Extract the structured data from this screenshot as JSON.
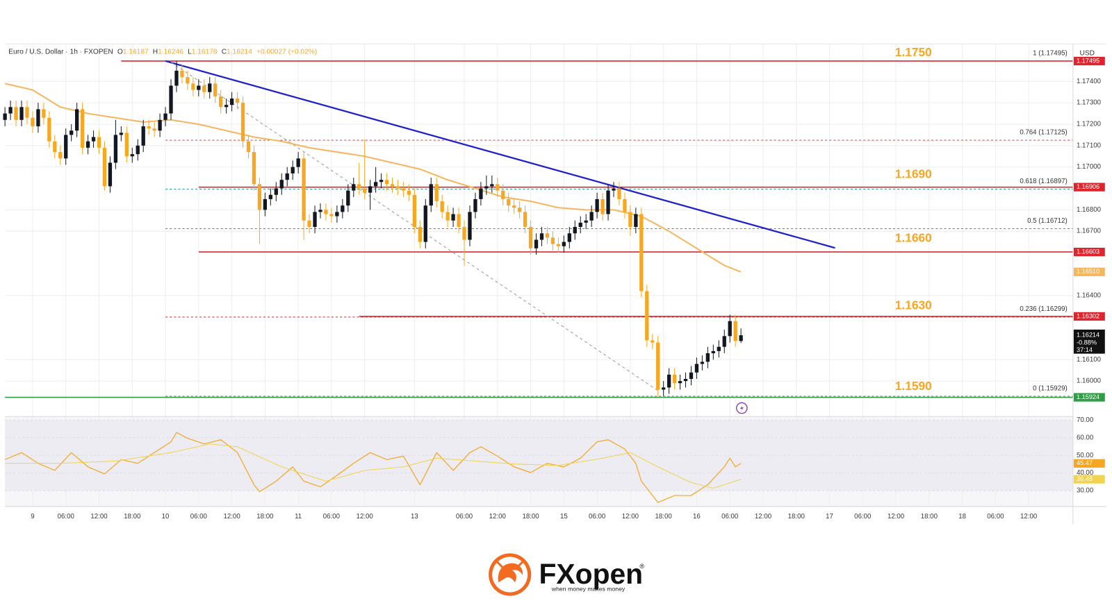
{
  "chart_data": [
    {
      "type": "candlestick",
      "title": "Euro / U.S. Dollar · 1h · FXOPEN",
      "ohlc_labels": [
        "O",
        "H",
        "L",
        "C"
      ],
      "change": "+0.00027 (+0.02%)",
      "currency": "USD",
      "open": [
        1.1722,
        1.1725,
        1.1728,
        1.1722,
        1.1728,
        1.1723,
        1.1719,
        1.1727,
        1.1723,
        1.1712,
        1.1707,
        1.1704,
        1.1715,
        1.1717,
        1.1727,
        1.1709,
        1.1712,
        1.1714,
        1.1709,
        1.1691,
        1.1702,
        1.1715,
        1.1716,
        1.1705,
        1.1706,
        1.171,
        1.1719,
        1.1718,
        1.1717,
        1.1722,
        1.1725,
        1.1738,
        1.1745,
        1.1742,
        1.1739,
        1.1736,
        1.1738,
        1.1735,
        1.1739,
        1.1733,
        1.1728,
        1.1729,
        1.1732,
        1.173,
        1.1712,
        1.1707,
        1.1692,
        1.168,
        1.1685,
        1.1687,
        1.169,
        1.1694,
        1.1697,
        1.17,
        1.1704,
        1.1675,
        1.1672,
        1.1679,
        1.168,
        1.1678,
        1.1677,
        1.1679,
        1.1682,
        1.1689,
        1.1692,
        1.169,
        1.1688,
        1.1691,
        1.1693,
        1.1694,
        1.1692,
        1.1691,
        1.169,
        1.1689,
        1.1687,
        1.1672,
        1.1665,
        1.1682,
        1.1692,
        1.1684,
        1.1679,
        1.1675,
        1.1678,
        1.1672,
        1.1666,
        1.1679,
        1.1685,
        1.169,
        1.1691,
        1.1692,
        1.1689,
        1.1685,
        1.1682,
        1.1681,
        1.1679,
        1.1672,
        1.1662,
        1.1666,
        1.1669,
        1.1667,
        1.1664,
        1.1663,
        1.1665,
        1.1669,
        1.1672,
        1.1674,
        1.1675,
        1.1679,
        1.1685,
        1.1678,
        1.1689,
        1.169,
        1.1685,
        1.1679,
        1.1672,
        1.1678,
        1.1642,
        1.1619,
        1.1618,
        1.1596,
        1.1597,
        1.1603,
        1.1599,
        1.16,
        1.1601,
        1.1604,
        1.1608,
        1.1609,
        1.1613,
        1.1614,
        1.1616,
        1.1621,
        1.1628,
        1.16187
      ],
      "high": [
        1.1728,
        1.1731,
        1.1731,
        1.1731,
        1.1731,
        1.1726,
        1.173,
        1.173,
        1.1726,
        1.1715,
        1.171,
        1.1718,
        1.172,
        1.173,
        1.173,
        1.1715,
        1.1717,
        1.1717,
        1.1712,
        1.1705,
        1.1722,
        1.1719,
        1.1719,
        1.1709,
        1.1713,
        1.1722,
        1.1722,
        1.1721,
        1.1725,
        1.1728,
        1.1741,
        1.17495,
        1.1748,
        1.1745,
        1.1742,
        1.1741,
        1.1741,
        1.1742,
        1.1742,
        1.1736,
        1.1732,
        1.1735,
        1.1735,
        1.1733,
        1.1715,
        1.171,
        1.1695,
        1.1688,
        1.169,
        1.1693,
        1.1697,
        1.17,
        1.1703,
        1.1707,
        1.1707,
        1.1678,
        1.1682,
        1.1683,
        1.1683,
        1.1681,
        1.1682,
        1.1685,
        1.1692,
        1.1695,
        1.1702,
        1.1713,
        1.1694,
        1.17,
        1.1697,
        1.1697,
        1.1695,
        1.1694,
        1.1693,
        1.1692,
        1.169,
        1.1675,
        1.1685,
        1.1695,
        1.1695,
        1.1687,
        1.1682,
        1.1681,
        1.1681,
        1.1675,
        1.1682,
        1.1688,
        1.1693,
        1.1696,
        1.1696,
        1.1695,
        1.1692,
        1.1688,
        1.1685,
        1.1684,
        1.1682,
        1.1675,
        1.1669,
        1.1672,
        1.1672,
        1.167,
        1.1667,
        1.1668,
        1.1672,
        1.1675,
        1.1677,
        1.1678,
        1.1682,
        1.1688,
        1.1688,
        1.1692,
        1.1693,
        1.1693,
        1.1688,
        1.1682,
        1.1681,
        1.1681,
        1.1645,
        1.1622,
        1.1621,
        1.16,
        1.1606,
        1.1606,
        1.1603,
        1.1604,
        1.1607,
        1.1611,
        1.1612,
        1.1616,
        1.1617,
        1.1619,
        1.1624,
        1.1631,
        1.1631,
        1.16246
      ],
      "low": [
        1.1719,
        1.1722,
        1.1719,
        1.1719,
        1.172,
        1.1716,
        1.1716,
        1.172,
        1.1709,
        1.1704,
        1.1701,
        1.1701,
        1.1712,
        1.1714,
        1.1706,
        1.1706,
        1.1709,
        1.1706,
        1.1689,
        1.1688,
        1.1699,
        1.1712,
        1.1702,
        1.1702,
        1.1703,
        1.1707,
        1.1715,
        1.1714,
        1.1714,
        1.1719,
        1.1722,
        1.1735,
        1.1739,
        1.1736,
        1.1733,
        1.1733,
        1.1732,
        1.1732,
        1.173,
        1.1725,
        1.1725,
        1.1726,
        1.1727,
        1.1709,
        1.1704,
        1.1689,
        1.1664,
        1.1677,
        1.1682,
        1.1684,
        1.1687,
        1.1691,
        1.1694,
        1.1697,
        1.1666,
        1.1669,
        1.1669,
        1.1676,
        1.1675,
        1.1674,
        1.1674,
        1.1676,
        1.1679,
        1.1686,
        1.1687,
        1.1685,
        1.168,
        1.1688,
        1.169,
        1.1689,
        1.1688,
        1.1687,
        1.1686,
        1.1684,
        1.1669,
        1.1662,
        1.1662,
        1.1679,
        1.1681,
        1.1676,
        1.1672,
        1.1672,
        1.1669,
        1.1654,
        1.1663,
        1.1676,
        1.1682,
        1.1687,
        1.1688,
        1.1686,
        1.1682,
        1.1679,
        1.1678,
        1.1676,
        1.1669,
        1.1659,
        1.1659,
        1.1663,
        1.1664,
        1.1661,
        1.166,
        1.166,
        1.1662,
        1.1666,
        1.1669,
        1.1671,
        1.1672,
        1.1676,
        1.1675,
        1.1675,
        1.1686,
        1.1682,
        1.1676,
        1.1668,
        1.1669,
        1.1639,
        1.1616,
        1.1615,
        1.15929,
        1.1593,
        1.1594,
        1.1596,
        1.1596,
        1.1597,
        1.1598,
        1.1601,
        1.1605,
        1.1606,
        1.161,
        1.1611,
        1.1613,
        1.1618,
        1.1616,
        1.16178
      ],
      "close": [
        1.1725,
        1.1728,
        1.1722,
        1.1728,
        1.1723,
        1.1719,
        1.1727,
        1.1723,
        1.1712,
        1.1707,
        1.1704,
        1.1715,
        1.1717,
        1.1727,
        1.1709,
        1.1712,
        1.1714,
        1.1709,
        1.1691,
        1.1702,
        1.1715,
        1.1716,
        1.1705,
        1.1706,
        1.171,
        1.1719,
        1.1718,
        1.1717,
        1.1722,
        1.1725,
        1.1738,
        1.1745,
        1.1742,
        1.1739,
        1.1736,
        1.1738,
        1.1735,
        1.1739,
        1.1733,
        1.1728,
        1.1729,
        1.1732,
        1.173,
        1.1712,
        1.1707,
        1.1692,
        1.168,
        1.1685,
        1.1687,
        1.169,
        1.1694,
        1.1697,
        1.17,
        1.1704,
        1.1675,
        1.1672,
        1.1679,
        1.168,
        1.1678,
        1.1677,
        1.1679,
        1.1682,
        1.1689,
        1.1692,
        1.169,
        1.1688,
        1.1691,
        1.1693,
        1.1694,
        1.1692,
        1.1691,
        1.169,
        1.1689,
        1.1687,
        1.1672,
        1.1665,
        1.1682,
        1.1692,
        1.1684,
        1.1679,
        1.1675,
        1.1678,
        1.1672,
        1.1666,
        1.1679,
        1.1685,
        1.169,
        1.1691,
        1.1692,
        1.1689,
        1.1685,
        1.1682,
        1.1681,
        1.1679,
        1.1672,
        1.1662,
        1.1666,
        1.1669,
        1.1667,
        1.1664,
        1.1663,
        1.1665,
        1.1669,
        1.1672,
        1.1674,
        1.1675,
        1.1679,
        1.1685,
        1.1678,
        1.1689,
        1.169,
        1.1685,
        1.1679,
        1.1672,
        1.1678,
        1.1642,
        1.1619,
        1.1618,
        1.1596,
        1.1597,
        1.1603,
        1.1599,
        1.16,
        1.1601,
        1.1604,
        1.1608,
        1.1609,
        1.1613,
        1.1614,
        1.1616,
        1.1621,
        1.1628,
        1.16187,
        1.16214
      ],
      "up_color": "#131722",
      "down_color": "#f7a823",
      "xlim": [
        0,
        193
      ],
      "xticks": [
        {
          "value": 5,
          "label": "9"
        },
        {
          "value": 11,
          "label": "06:00"
        },
        {
          "value": 17,
          "label": "12:00"
        },
        {
          "value": 23,
          "label": "18:00"
        },
        {
          "value": 29,
          "label": "10"
        },
        {
          "value": 35,
          "label": "06:00"
        },
        {
          "value": 41,
          "label": "12:00"
        },
        {
          "value": 47,
          "label": "18:00"
        },
        {
          "value": 53,
          "label": "11"
        },
        {
          "value": 59,
          "label": "06:00"
        },
        {
          "value": 65,
          "label": "12:00"
        },
        {
          "value": 74,
          "label": "13"
        },
        {
          "value": 83,
          "label": "06:00"
        },
        {
          "value": 89,
          "label": "12:00"
        },
        {
          "value": 95,
          "label": "18:00"
        },
        {
          "value": 101,
          "label": "15"
        },
        {
          "value": 107,
          "label": "06:00"
        },
        {
          "value": 113,
          "label": "12:00"
        },
        {
          "value": 119,
          "label": "18:00"
        },
        {
          "value": 125,
          "label": "16"
        },
        {
          "value": 131,
          "label": "06:00"
        },
        {
          "value": 137,
          "label": "12:00"
        },
        {
          "value": 143,
          "label": "18:00"
        },
        {
          "value": 149,
          "label": "17"
        },
        {
          "value": 155,
          "label": "06:00"
        },
        {
          "value": 161,
          "label": "12:00"
        },
        {
          "value": 167,
          "label": "18:00"
        },
        {
          "value": 173,
          "label": "18"
        },
        {
          "value": 179,
          "label": "06:00"
        },
        {
          "value": 185,
          "label": "12:00"
        }
      ],
      "ylim": [
        1.15834,
        1.17575
      ],
      "yticks": [
        {
          "value": 1.174,
          "label": "1.17400"
        },
        {
          "value": 1.173,
          "label": "1.17300"
        },
        {
          "value": 1.172,
          "label": "1.17200"
        },
        {
          "value": 1.171,
          "label": "1.17100"
        },
        {
          "value": 1.17,
          "label": "1.17000"
        },
        {
          "value": 1.168,
          "label": "1.16800"
        },
        {
          "value": 1.167,
          "label": "1.16700"
        },
        {
          "value": 1.164,
          "label": "1.16400"
        },
        {
          "value": 1.161,
          "label": "1.16100"
        },
        {
          "value": 1.16,
          "label": "1.16000"
        }
      ],
      "grid": true,
      "ma": {
        "color": "#f5b660",
        "x": [
          0,
          5,
          10,
          15,
          20,
          25,
          30,
          35,
          40,
          45,
          50,
          55,
          60,
          65,
          70,
          75,
          80,
          85,
          90,
          95,
          100,
          105,
          110,
          115,
          120,
          125,
          130,
          133
        ],
        "values": [
          1.1739,
          1.1736,
          1.1728,
          1.1725,
          1.1723,
          1.1721,
          1.1722,
          1.172,
          1.1717,
          1.1714,
          1.1712,
          1.1709,
          1.1707,
          1.1705,
          1.1702,
          1.1699,
          1.1694,
          1.169,
          1.1686,
          1.1684,
          1.1681,
          1.168,
          1.168,
          1.1677,
          1.167,
          1.1662,
          1.1654,
          1.1651
        ],
        "value_labels": [
          null,
          null,
          null,
          null,
          null,
          null,
          null,
          null,
          null,
          null,
          null,
          null,
          null,
          null,
          null,
          null,
          null,
          null,
          null,
          null,
          null,
          null,
          null,
          null,
          null,
          null,
          null,
          "1.16510"
        ]
      },
      "levels": [
        {
          "value": 1.17495,
          "start": 21,
          "color": "#e0242d"
        },
        {
          "value": 1.16906,
          "start": 35,
          "color": "#e0242d"
        },
        {
          "value": 1.16603,
          "start": 35,
          "color": "#e0242d"
        },
        {
          "value": 1.16302,
          "start": 64,
          "color": "#e0242d"
        },
        {
          "value": 1.15924,
          "start": 0,
          "color": "#2e9e44"
        }
      ],
      "fibonacci": {
        "start": 29,
        "levels": [
          {
            "value": 1.17495,
            "label": "1 (1.17495)",
            "color": "#2196f3"
          },
          {
            "value": 1.17125,
            "label": "0.764 (1.17125)",
            "color": "#c62828"
          },
          {
            "value": 1.16897,
            "label": "0.618 (1.16897)",
            "color": "#009688"
          },
          {
            "value": 1.16712,
            "label": "0.5 (1.16712)",
            "color": "#777777"
          },
          {
            "value": 1.16299,
            "label": "0.236 (1.16299)",
            "color": "#c62828"
          },
          {
            "value": 1.15929,
            "label": "0 (1.15929)",
            "color": "#777777"
          }
        ]
      },
      "trend_lines": [
        {
          "color": "#1e22c8",
          "x": [
            29,
            150
          ],
          "y": [
            1.17495,
            1.16622
          ]
        },
        {
          "color": "#9a9a9a",
          "dashed": true,
          "x": [
            30,
            118
          ],
          "y": [
            1.1749,
            1.15955
          ]
        }
      ],
      "annotations": [
        "1.1750",
        "1.1690",
        "1.1660",
        "1.1630",
        "1.1590"
      ],
      "annotation_color": "#f5a623",
      "last_price": {
        "change": "-0.88%",
        "countdown": "37:14"
      }
    },
    {
      "type": "line",
      "ylim": [
        21,
        72
      ],
      "yticks": [
        {
          "value": 70,
          "label": "70.00"
        },
        {
          "value": 60,
          "label": "60.00"
        },
        {
          "value": 50,
          "label": "50.00"
        },
        {
          "value": 40,
          "label": "40.00"
        },
        {
          "value": 30,
          "label": "30.00"
        }
      ],
      "band": [
        30,
        70
      ],
      "series": [
        {
          "color": "#f5a623",
          "x": [
            0,
            3,
            6,
            9,
            12,
            15,
            18,
            21,
            24,
            27,
            30,
            31,
            33,
            36,
            39,
            42,
            45,
            46,
            49,
            52,
            54,
            57,
            60,
            63,
            66,
            69,
            72,
            75,
            78,
            81,
            84,
            86,
            89,
            92,
            95,
            98,
            101,
            104,
            107,
            109,
            112,
            114,
            115,
            116,
            118,
            121,
            124,
            127,
            130,
            131,
            132,
            133
          ],
          "values": [
            47.6,
            51.6,
            45.5,
            41.5,
            51.6,
            43.5,
            39.5,
            47.6,
            45.5,
            51.6,
            57.7,
            63,
            59.7,
            56.5,
            58.9,
            51.6,
            33.4,
            29.4,
            35.4,
            43.5,
            35.4,
            32.2,
            38.7,
            45.5,
            51.6,
            47.6,
            49.6,
            33.4,
            51.6,
            41.5,
            51.6,
            54.9,
            49.6,
            43.5,
            40.3,
            45.5,
            43.5,
            48.4,
            57.7,
            58.9,
            53.6,
            45.5,
            35.4,
            31.4,
            23.3,
            27.3,
            27.3,
            33.4,
            43.5,
            48.4,
            43.5,
            45.47
          ]
        },
        {
          "color": "#f2d34f",
          "x": [
            0,
            10,
            20,
            30,
            37,
            42,
            50,
            58,
            65,
            72,
            78,
            85,
            92,
            100,
            108,
            113,
            118,
            124,
            128,
            133
          ],
          "values": [
            45.5,
            45.5,
            46.8,
            51.6,
            56.5,
            54.9,
            43.5,
            35.4,
            41.5,
            43.5,
            48.4,
            46.8,
            45.1,
            44.3,
            48.4,
            51.6,
            43.5,
            34.6,
            31.4,
            36.48
          ]
        }
      ]
    }
  ],
  "brand": {
    "name": [
      "FX",
      "open"
    ],
    "registered": "®",
    "tagline": "when money makes money"
  }
}
